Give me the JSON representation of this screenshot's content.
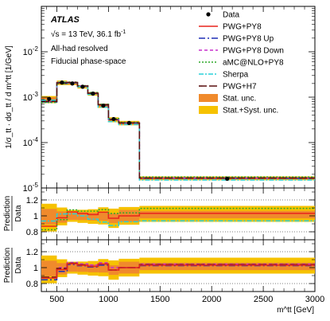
{
  "chart_data": {
    "type": "line",
    "atlas_label": "ATLAS",
    "energy_line": "√s = 13 TeV, 36.1 fb",
    "energy_line_sup": "-1",
    "selection_line": "All-had resolved",
    "phase_space_line": "Fiducial phase-space",
    "ylabel_main": "1/σ_tt · dσ_tt / d m^tt [1/GeV]",
    "ylabel_ratio_top": "Prediction",
    "ylabel_ratio_bottom": "Data",
    "xlabel": "m^tt [GeV]",
    "xlim": [
      350,
      3000
    ],
    "ylim_main": [
      1e-05,
      0.1
    ],
    "ylim_ratio": [
      0.7,
      1.35
    ],
    "log_y_main": true,
    "x_ticks": [
      "500",
      "1000",
      "1500",
      "2000",
      "2500",
      "3000"
    ],
    "y_ticks_main": [
      "10^-5",
      "10^-4",
      "10^-3",
      "10^-2"
    ],
    "y_ticks_ratio": [
      "0.8",
      "1",
      "1.2"
    ],
    "bin_edges": [
      350,
      500,
      600,
      700,
      800,
      900,
      1000,
      1100,
      1300,
      3000
    ],
    "data": {
      "name": "Data",
      "x": [
        425,
        550,
        650,
        750,
        850,
        950,
        1050,
        1200,
        2150
      ],
      "y": [
        0.00092,
        0.0021,
        0.002,
        0.0017,
        0.0012,
        0.00065,
        0.00033,
        0.00027,
        1.6e-05
      ]
    },
    "stat_band": {
      "name": "Stat. unc.",
      "lo": [
        0.00082,
        0.00192,
        0.0019,
        0.00161,
        0.00113,
        0.00061,
        0.0003,
        0.00025,
        1.55e-05
      ],
      "hi": [
        0.001,
        0.00222,
        0.0021,
        0.00178,
        0.00125,
        0.00068,
        0.00034,
        0.00029,
        1.7e-05
      ]
    },
    "syst_band": {
      "name": "Stat.+Syst. unc.",
      "lo": [
        0.00074,
        0.00185,
        0.00185,
        0.00155,
        0.00108,
        0.00058,
        0.00028,
        0.00024,
        1.48e-05
      ],
      "hi": [
        0.00106,
        0.00232,
        0.00215,
        0.00183,
        0.0013,
        0.00072,
        0.00036,
        0.0003,
        1.8e-05
      ]
    },
    "series": [
      {
        "name": "PWG+PY8",
        "color": "#e8241c",
        "dash": "",
        "values": [
          0.0008,
          0.00205,
          0.0021,
          0.00175,
          0.00122,
          0.00068,
          0.00032,
          0.00027,
          1.65e-05
        ]
      },
      {
        "name": "PWG+PY8 Up",
        "color": "#1f2fb5",
        "dash": "8,3,2,3",
        "values": [
          0.00078,
          0.002,
          0.00208,
          0.00174,
          0.00121,
          0.00067,
          0.00032,
          0.00027,
          1.64e-05
        ]
      },
      {
        "name": "PWG+PY8 Down",
        "color": "#c82fcc",
        "dash": "4,3",
        "values": [
          0.0008,
          0.0021,
          0.00213,
          0.00178,
          0.00124,
          0.00069,
          0.00033,
          0.00027,
          1.67e-05
        ]
      },
      {
        "name": "aMC@NLO+PY8",
        "color": "#2fa82a",
        "dash": "2,2",
        "values": [
          0.00076,
          0.002,
          0.00215,
          0.0018,
          0.00127,
          0.0007,
          0.00034,
          0.00028,
          1.75e-05
        ]
      },
      {
        "name": "Sherpa",
        "color": "#28d0d8",
        "dash": "6,2,2,2",
        "values": [
          0.00086,
          0.00215,
          0.00205,
          0.0017,
          0.00115,
          0.0006,
          0.00029,
          0.00025,
          1.5e-05
        ]
      },
      {
        "name": "PWG+H7",
        "color": "#5a0f0f",
        "dash": "10,3",
        "values": [
          0.00081,
          0.00208,
          0.00211,
          0.00176,
          0.00122,
          0.00068,
          0.00032,
          0.00027,
          1.66e-05
        ]
      }
    ],
    "ratio_top_series": [
      "PWG+PY8",
      "aMC@NLO+PY8",
      "Sherpa"
    ],
    "ratio_bottom_series": [
      "PWG+PY8 Up",
      "PWG+PY8 Down",
      "PWG+H7",
      "PWG+PY8"
    ],
    "legend_placement": "top-right"
  }
}
